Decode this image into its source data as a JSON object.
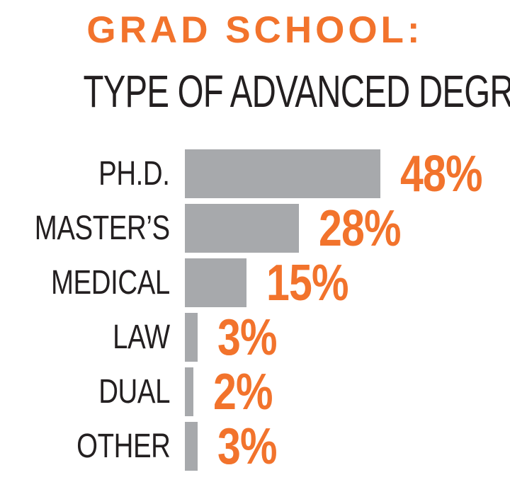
{
  "header": {
    "title": "GRAD SCHOOL:",
    "subtitle": "TYPE OF ADVANCED DEGREE"
  },
  "chart_data": {
    "type": "bar",
    "orientation": "horizontal",
    "title": "GRAD SCHOOL: TYPE OF ADVANCED DEGREE",
    "categories": [
      "PH.D.",
      "MASTER’S",
      "MEDICAL",
      "LAW",
      "DUAL",
      "OTHER"
    ],
    "values": [
      48,
      28,
      15,
      3,
      2,
      3
    ],
    "value_labels": [
      "48%",
      "28%",
      "15%",
      "3%",
      "2%",
      "3%"
    ],
    "unit": "%",
    "xlim": [
      0,
      48
    ],
    "grid": false,
    "legend": false,
    "axes_shown": false
  },
  "colors": {
    "accent_orange": "#F2732C",
    "bar_gray": "#A7A9AC",
    "text_black": "#231F20",
    "background": "#FFFFFF"
  }
}
